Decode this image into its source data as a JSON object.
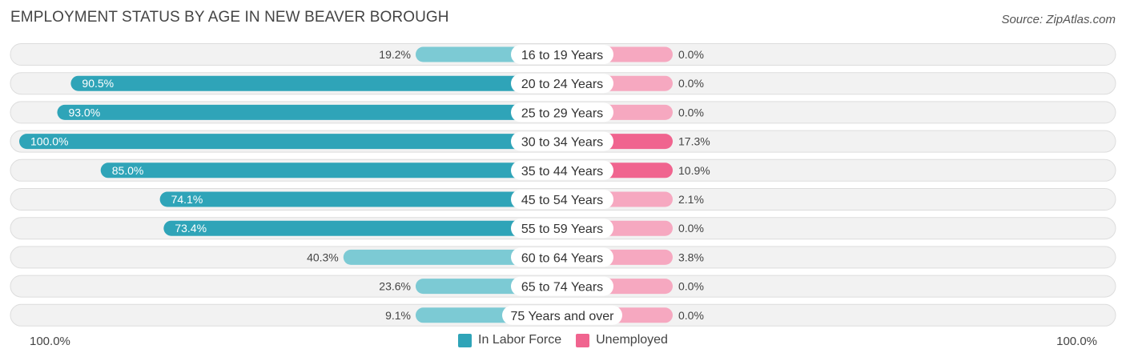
{
  "title": "EMPLOYMENT STATUS BY AGE IN NEW BEAVER BOROUGH",
  "source": "Source: ZipAtlas.com",
  "axis": {
    "left_label": "100.0%",
    "right_label": "100.0%"
  },
  "legend": [
    {
      "label": "In Labor Force",
      "color": "#2fa4b8"
    },
    {
      "label": "Unemployed",
      "color": "#f0648f"
    }
  ],
  "chart_data": {
    "type": "bar",
    "orientation": "horizontal-diverging",
    "title": "EMPLOYMENT STATUS BY AGE IN NEW BEAVER BOROUGH",
    "categories": [
      "16 to 19 Years",
      "20 to 24 Years",
      "25 to 29 Years",
      "30 to 34 Years",
      "35 to 44 Years",
      "45 to 54 Years",
      "55 to 59 Years",
      "60 to 64 Years",
      "65 to 74 Years",
      "75 Years and over"
    ],
    "series": [
      {
        "name": "In Labor Force",
        "values": [
          19.2,
          90.5,
          93.0,
          100.0,
          85.0,
          74.1,
          73.4,
          40.3,
          23.6,
          9.1
        ],
        "labels": [
          "19.2%",
          "90.5%",
          "93.0%",
          "100.0%",
          "85.0%",
          "74.1%",
          "73.4%",
          "40.3%",
          "23.6%",
          "9.1%"
        ]
      },
      {
        "name": "Unemployed",
        "values": [
          0.0,
          0.0,
          0.0,
          17.3,
          10.9,
          2.1,
          0.0,
          3.8,
          0.0,
          0.0
        ],
        "labels": [
          "0.0%",
          "0.0%",
          "0.0%",
          "17.3%",
          "10.9%",
          "2.1%",
          "0.0%",
          "3.8%",
          "0.0%",
          "0.0%"
        ]
      }
    ],
    "xlim": [
      -100,
      100
    ],
    "legend_position": "bottom-center"
  }
}
